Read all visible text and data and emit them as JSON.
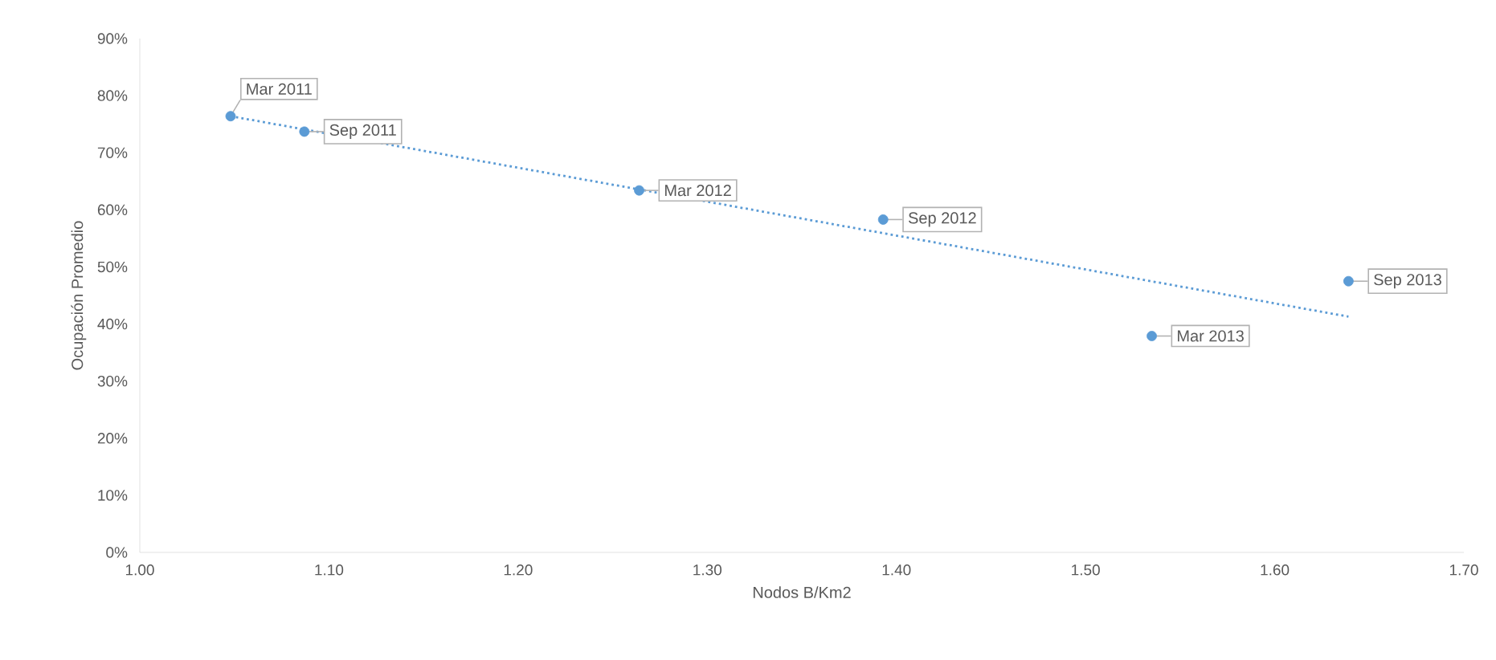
{
  "chart_data": {
    "type": "scatter",
    "xlabel": "Nodos B/Km2",
    "ylabel": "Ocupación Promedio",
    "xlim": [
      1.0,
      1.7
    ],
    "xticks": [
      {
        "value": 1.0,
        "label": "1.00"
      },
      {
        "value": 1.1,
        "label": "1.10"
      },
      {
        "value": 1.2,
        "label": "1.20"
      },
      {
        "value": 1.3,
        "label": "1.30"
      },
      {
        "value": 1.4,
        "label": "1.40"
      },
      {
        "value": 1.5,
        "label": "1.50"
      },
      {
        "value": 1.6,
        "label": "1.60"
      },
      {
        "value": 1.7,
        "label": "1.70"
      }
    ],
    "ylim": [
      0,
      90
    ],
    "yticks": [
      {
        "value": 0,
        "label": "0%"
      },
      {
        "value": 10,
        "label": "10%"
      },
      {
        "value": 20,
        "label": "20%"
      },
      {
        "value": 30,
        "label": "30%"
      },
      {
        "value": 40,
        "label": "40%"
      },
      {
        "value": 50,
        "label": "50%"
      },
      {
        "value": 60,
        "label": "60%"
      },
      {
        "value": 70,
        "label": "70%"
      },
      {
        "value": 80,
        "label": "80%"
      },
      {
        "value": 90,
        "label": "90%"
      }
    ],
    "series": [
      {
        "marker": "circle",
        "color": "#5b9bd5",
        "x": [
          1.048,
          1.087,
          1.264,
          1.393,
          1.535,
          1.639
        ],
        "values": [
          76.4,
          73.7,
          63.4,
          58.3,
          37.9,
          47.5
        ]
      },
      {
        "type": "line",
        "line_style": "dotted",
        "color": "#5b9bd5",
        "x": [
          1.048,
          1.639
        ],
        "values": [
          76.4,
          41.3
        ]
      }
    ],
    "annotations": [
      {
        "text": "Mar 2011",
        "x": 1.048,
        "y": 76.4
      },
      {
        "text": "Sep 2011",
        "x": 1.087,
        "y": 73.7
      },
      {
        "text": "Mar 2012",
        "x": 1.264,
        "y": 63.4
      },
      {
        "text": "Sep 2012",
        "x": 1.393,
        "y": 58.3
      },
      {
        "text": "Mar 2013",
        "x": 1.535,
        "y": 37.9
      },
      {
        "text": "Sep 2013",
        "x": 1.639,
        "y": 47.5
      }
    ]
  }
}
